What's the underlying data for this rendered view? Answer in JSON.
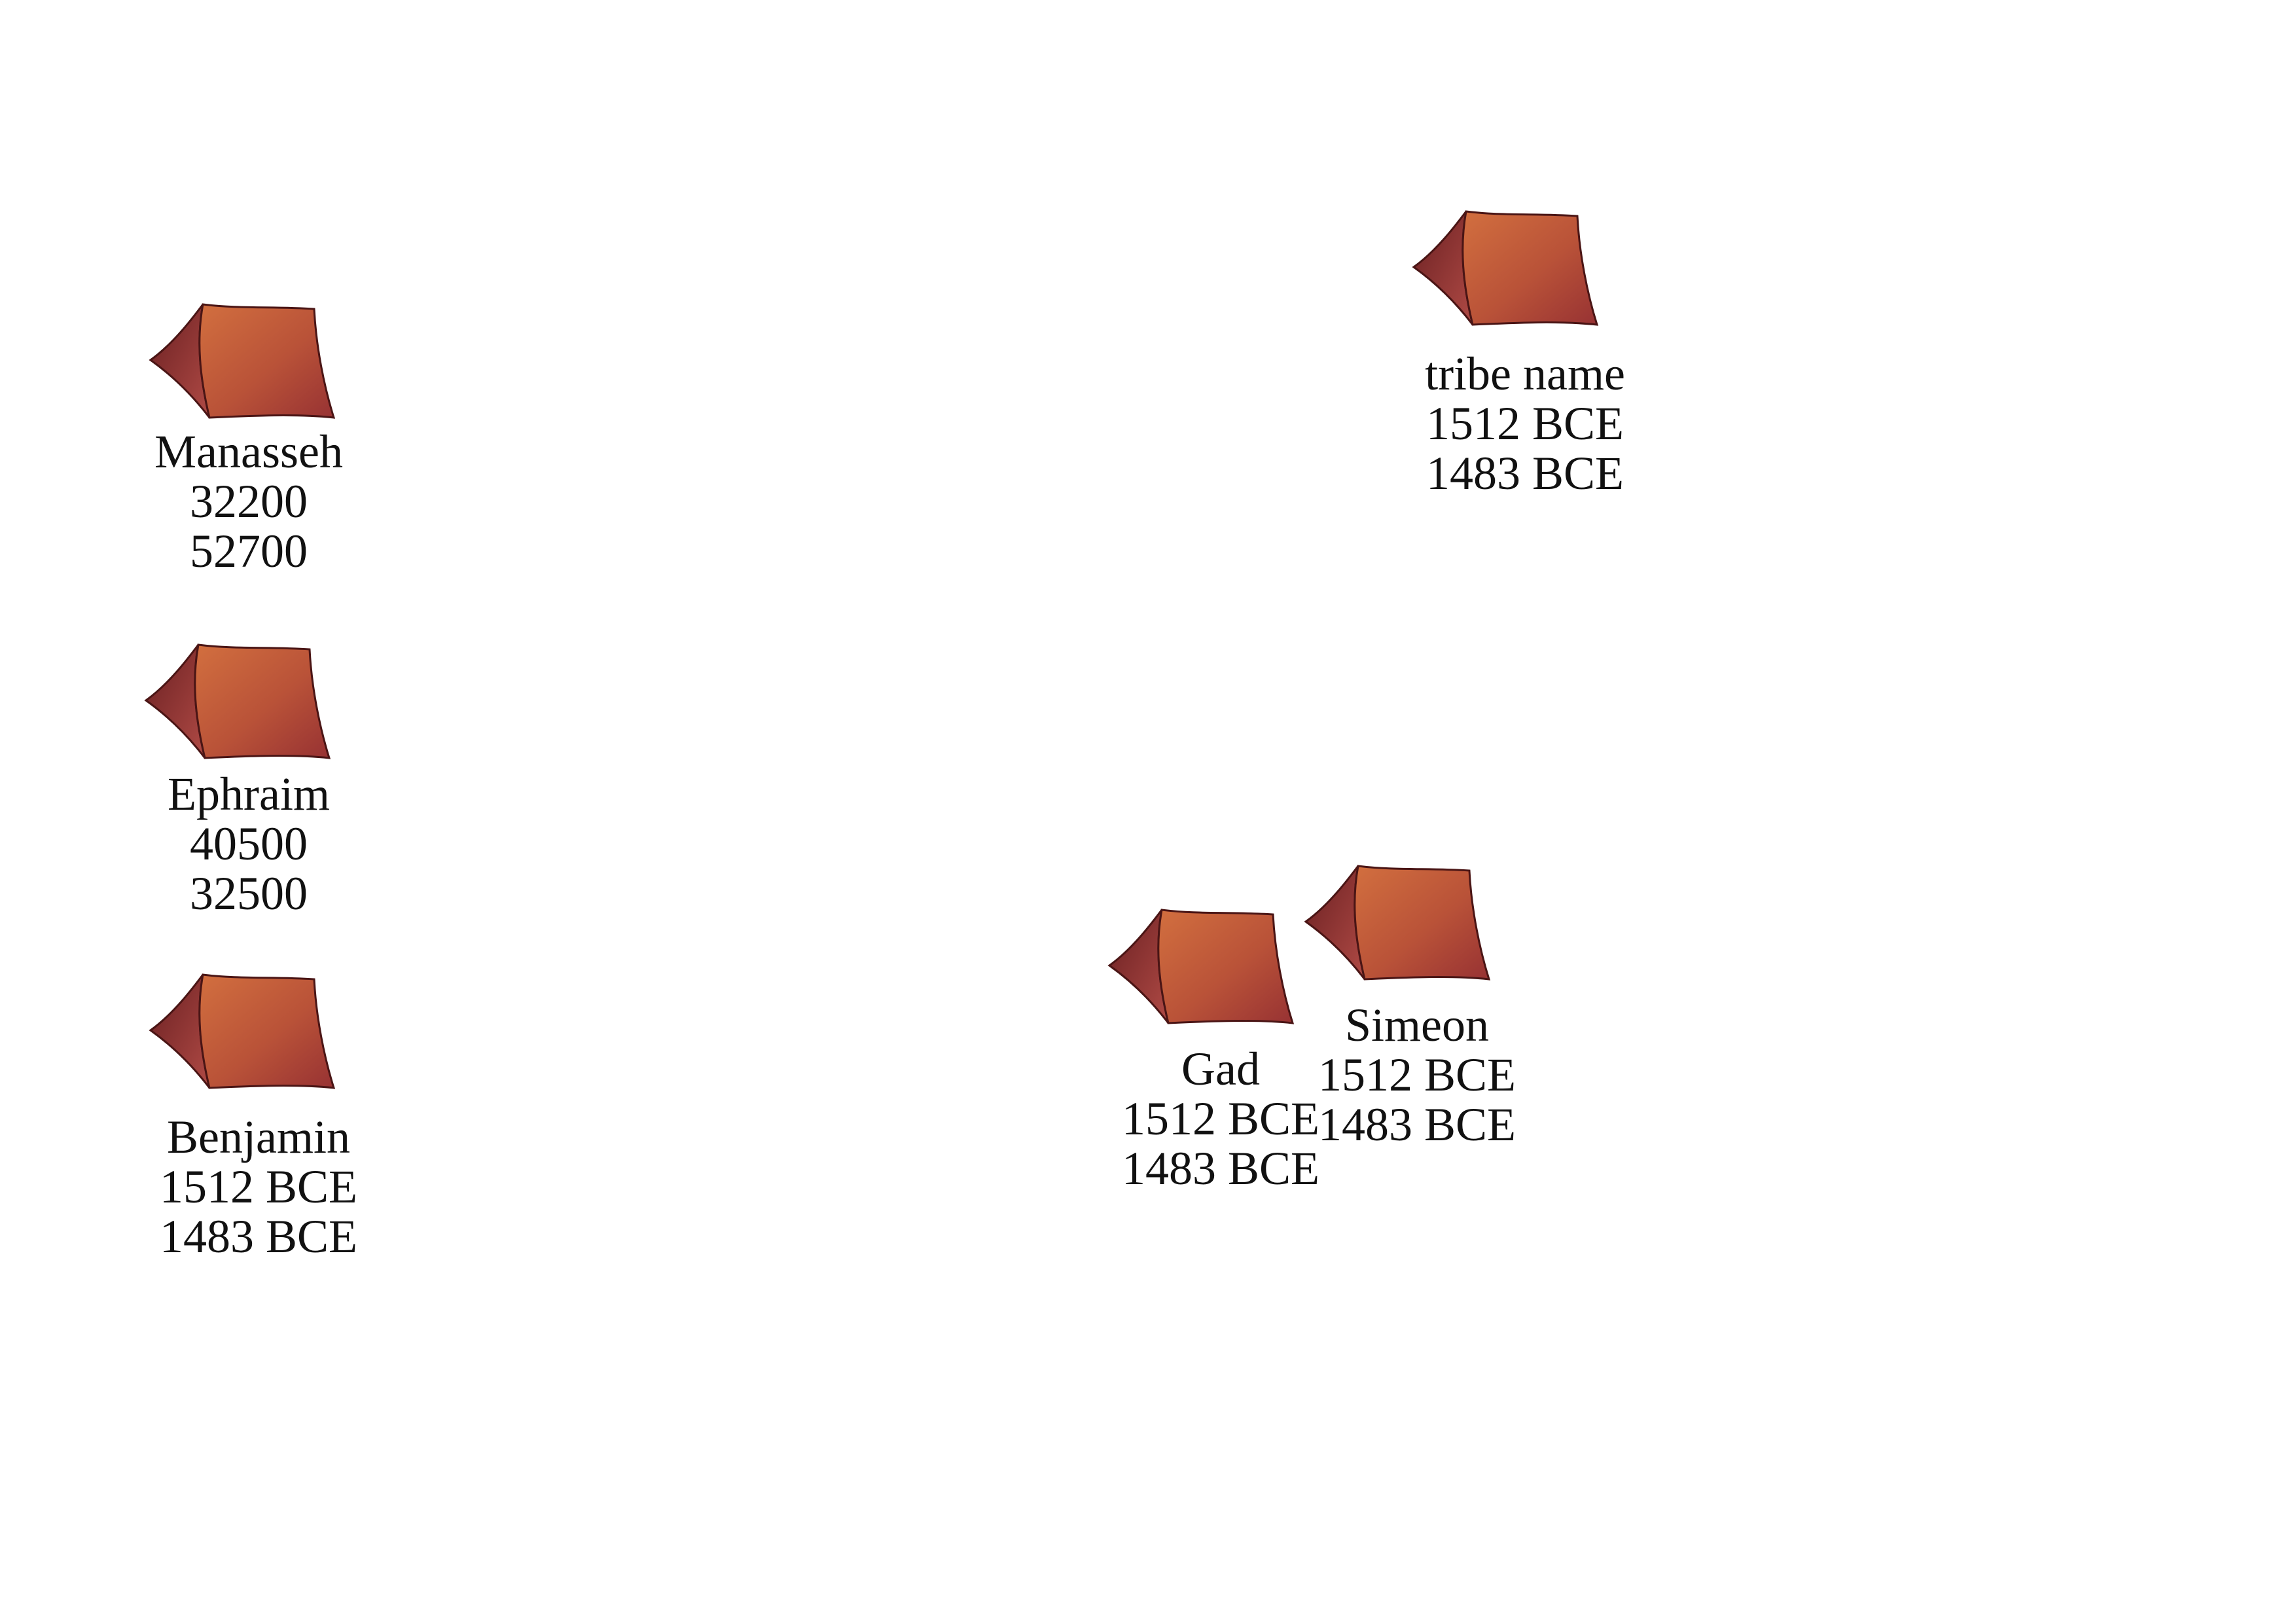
{
  "colors": {
    "tent_light": "#cd6a3c",
    "tent_dark": "#9b3535",
    "tent_side_light": "#a34848",
    "tent_side_dark": "#5e1c1e",
    "tent_stroke": "#4a1515",
    "text": "#111111"
  },
  "icon": "tent-icon",
  "camps": [
    {
      "id": "tribe-name",
      "name": "tribe name",
      "line2": "1512 BCE",
      "line3": "1483 BCE"
    },
    {
      "id": "manasseh",
      "name": "Manasseh",
      "line2": "32200",
      "line3": "52700"
    },
    {
      "id": "ephraim",
      "name": "Ephraim",
      "line2": "40500",
      "line3": "32500"
    },
    {
      "id": "benjamin",
      "name": "Benjamin",
      "line2": "1512 BCE",
      "line3": "1483 BCE"
    },
    {
      "id": "gad",
      "name": "Gad",
      "line2": "1512 BCE",
      "line3": "1483 BCE"
    },
    {
      "id": "simeon",
      "name": "Simeon",
      "line2": "1512 BCE",
      "line3": "1483 BCE"
    }
  ]
}
